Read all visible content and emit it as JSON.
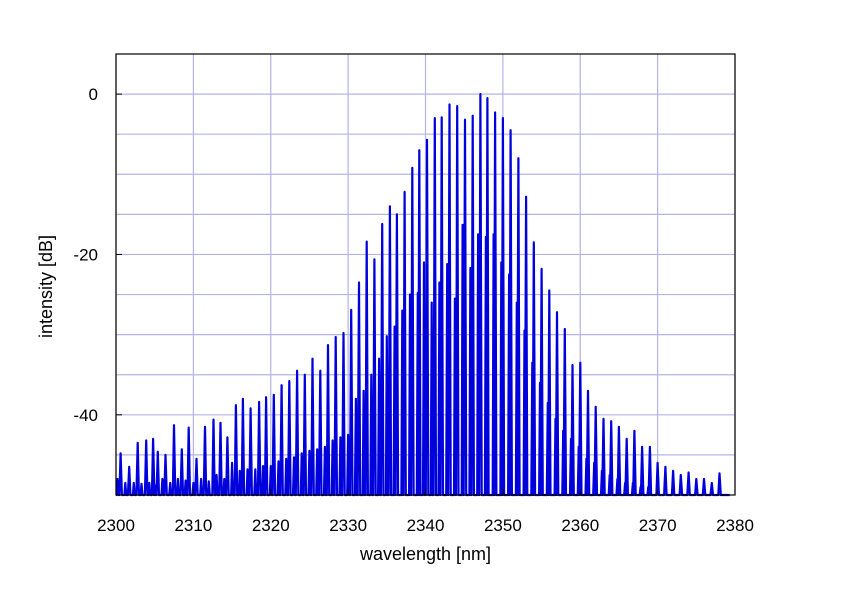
{
  "chart_data": {
    "type": "line",
    "title": "",
    "xlabel": "wavelength [nm]",
    "ylabel": "intensity [dB]",
    "xlim": [
      2300,
      2380
    ],
    "ylim": [
      -50,
      5
    ],
    "x_ticks": [
      2300,
      2310,
      2320,
      2330,
      2340,
      2350,
      2360,
      2370,
      2380
    ],
    "y_ticks": [
      0,
      -20,
      -40
    ],
    "grid": true,
    "line_color": "#0000dd",
    "grid_color": "#b4b4e8",
    "series": [
      {
        "peaks": [
          [
            2300.6,
            -44.8
          ],
          [
            2301.7,
            -46.5
          ],
          [
            2302.8,
            -43.5
          ],
          [
            2303.9,
            -43.2
          ],
          [
            2304.8,
            -43.0
          ],
          [
            2305.4,
            -44.6
          ],
          [
            2306.4,
            -45.0
          ],
          [
            2307.5,
            -41.3
          ],
          [
            2308.5,
            -44.3
          ],
          [
            2309.4,
            -41.6
          ],
          [
            2310.4,
            -45.5
          ],
          [
            2311.5,
            -41.5
          ],
          [
            2312.6,
            -40.6
          ],
          [
            2313.5,
            -41.0
          ],
          [
            2314.4,
            -42.8
          ],
          [
            2315.5,
            -38.8
          ],
          [
            2316.4,
            -38.0
          ],
          [
            2317.4,
            -39.2
          ],
          [
            2318.5,
            -38.4
          ],
          [
            2319.4,
            -37.8
          ],
          [
            2320.4,
            -37.5
          ],
          [
            2321.4,
            -36.3
          ],
          [
            2322.4,
            -35.8
          ],
          [
            2323.4,
            -34.5
          ],
          [
            2324.4,
            -35.0
          ],
          [
            2325.4,
            -33.0
          ],
          [
            2326.4,
            -34.5
          ],
          [
            2327.4,
            -31.3
          ],
          [
            2328.4,
            -30.3
          ],
          [
            2329.4,
            -29.8
          ],
          [
            2330.4,
            -26.9
          ],
          [
            2331.4,
            -23.5
          ],
          [
            2332.4,
            -18.4
          ],
          [
            2333.4,
            -20.6
          ],
          [
            2334.4,
            -16.2
          ],
          [
            2335.4,
            -14.0
          ],
          [
            2336.3,
            -15.0
          ],
          [
            2337.3,
            -12.2
          ],
          [
            2338.3,
            -9.2
          ],
          [
            2339.2,
            -7.0
          ],
          [
            2340.2,
            -5.7
          ],
          [
            2341.2,
            -3.0
          ],
          [
            2342.1,
            -2.9
          ],
          [
            2343.1,
            -1.3
          ],
          [
            2344.1,
            -1.5
          ],
          [
            2345.1,
            -3.2
          ],
          [
            2346.1,
            -2.7
          ],
          [
            2347.1,
            0.0
          ],
          [
            2348.0,
            -0.5
          ],
          [
            2349.0,
            -2.3
          ],
          [
            2350.0,
            -3.0
          ],
          [
            2351.0,
            -4.5
          ],
          [
            2352.0,
            -8.0
          ],
          [
            2353.0,
            -12.8
          ],
          [
            2354.0,
            -18.5
          ],
          [
            2355.0,
            -21.8
          ],
          [
            2356.0,
            -24.5
          ],
          [
            2357.0,
            -27.2
          ],
          [
            2358.0,
            -29.3
          ],
          [
            2359.0,
            -33.8
          ],
          [
            2360.0,
            -33.5
          ],
          [
            2361.0,
            -37.0
          ],
          [
            2362.0,
            -39.0
          ],
          [
            2363.0,
            -40.5
          ],
          [
            2364.0,
            -40.8
          ],
          [
            2365.0,
            -41.5
          ],
          [
            2366.0,
            -43.0
          ],
          [
            2367.0,
            -42.0
          ],
          [
            2368.0,
            -44.0
          ],
          [
            2369.0,
            -44.0
          ],
          [
            2370.0,
            -46.0
          ],
          [
            2371.0,
            -46.5
          ],
          [
            2372.0,
            -47.0
          ],
          [
            2373.0,
            -47.5
          ],
          [
            2374.0,
            -47.2
          ],
          [
            2375.0,
            -48.0
          ],
          [
            2376.0,
            -48.0
          ],
          [
            2377.0,
            -48.5
          ],
          [
            2378.0,
            -47.3
          ]
        ],
        "secondary_peaks": [
          [
            2300.2,
            -48.0
          ],
          [
            2301.2,
            -48.5
          ],
          [
            2302.3,
            -48.5
          ],
          [
            2303.3,
            -48.6
          ],
          [
            2304.3,
            -48.5
          ],
          [
            2305.0,
            -48.8
          ],
          [
            2306.0,
            -48.0
          ],
          [
            2307.0,
            -48.5
          ],
          [
            2308.0,
            -48.0
          ],
          [
            2309.0,
            -48.2
          ],
          [
            2310.0,
            -48.5
          ],
          [
            2311.0,
            -48.0
          ],
          [
            2312.0,
            -48.3
          ],
          [
            2313.0,
            -47.5
          ],
          [
            2314.0,
            -48.0
          ],
          [
            2315.0,
            -46.0
          ],
          [
            2316.0,
            -47.0
          ],
          [
            2317.0,
            -46.8
          ],
          [
            2318.0,
            -46.8
          ],
          [
            2319.0,
            -46.4
          ],
          [
            2320.0,
            -46.4
          ],
          [
            2321.0,
            -45.8
          ],
          [
            2322.0,
            -45.5
          ],
          [
            2323.0,
            -45.3
          ],
          [
            2324.0,
            -44.8
          ],
          [
            2325.0,
            -44.5
          ],
          [
            2326.0,
            -44.3
          ],
          [
            2327.0,
            -44.0
          ],
          [
            2328.0,
            -43.2
          ],
          [
            2329.0,
            -42.8
          ],
          [
            2330.0,
            -42.5
          ],
          [
            2331.0,
            -38.0
          ],
          [
            2332.0,
            -37.0
          ],
          [
            2333.0,
            -35.0
          ],
          [
            2334.0,
            -33.0
          ],
          [
            2335.0,
            -30.2
          ],
          [
            2336.0,
            -29.0
          ],
          [
            2337.0,
            -27.0
          ],
          [
            2338.0,
            -25.0
          ],
          [
            2339.0,
            -24.8
          ],
          [
            2339.8,
            -21.0
          ],
          [
            2340.8,
            -26.0
          ],
          [
            2341.8,
            -23.5
          ],
          [
            2342.8,
            -21.2
          ],
          [
            2343.8,
            -25.5
          ],
          [
            2344.8,
            -16.3
          ],
          [
            2345.8,
            -21.7
          ],
          [
            2346.8,
            -17.5
          ],
          [
            2347.8,
            -17.8
          ],
          [
            2348.8,
            -17.5
          ],
          [
            2349.8,
            -21.0
          ],
          [
            2350.8,
            -22.5
          ],
          [
            2351.8,
            -26.0
          ],
          [
            2352.8,
            -29.5
          ],
          [
            2353.8,
            -33.5
          ],
          [
            2354.8,
            -36.0
          ],
          [
            2355.8,
            -38.5
          ],
          [
            2356.8,
            -40.5
          ],
          [
            2357.8,
            -42.0
          ],
          [
            2358.8,
            -43.0
          ],
          [
            2359.8,
            -44.0
          ],
          [
            2360.8,
            -45.5
          ],
          [
            2361.8,
            -46.0
          ],
          [
            2362.8,
            -47.0
          ],
          [
            2363.8,
            -47.5
          ],
          [
            2364.8,
            -48.0
          ],
          [
            2365.8,
            -48.5
          ],
          [
            2366.8,
            -48.5
          ],
          [
            2367.8,
            -49.0
          ],
          [
            2368.8,
            -49.0
          ]
        ],
        "floor": -50
      }
    ]
  }
}
